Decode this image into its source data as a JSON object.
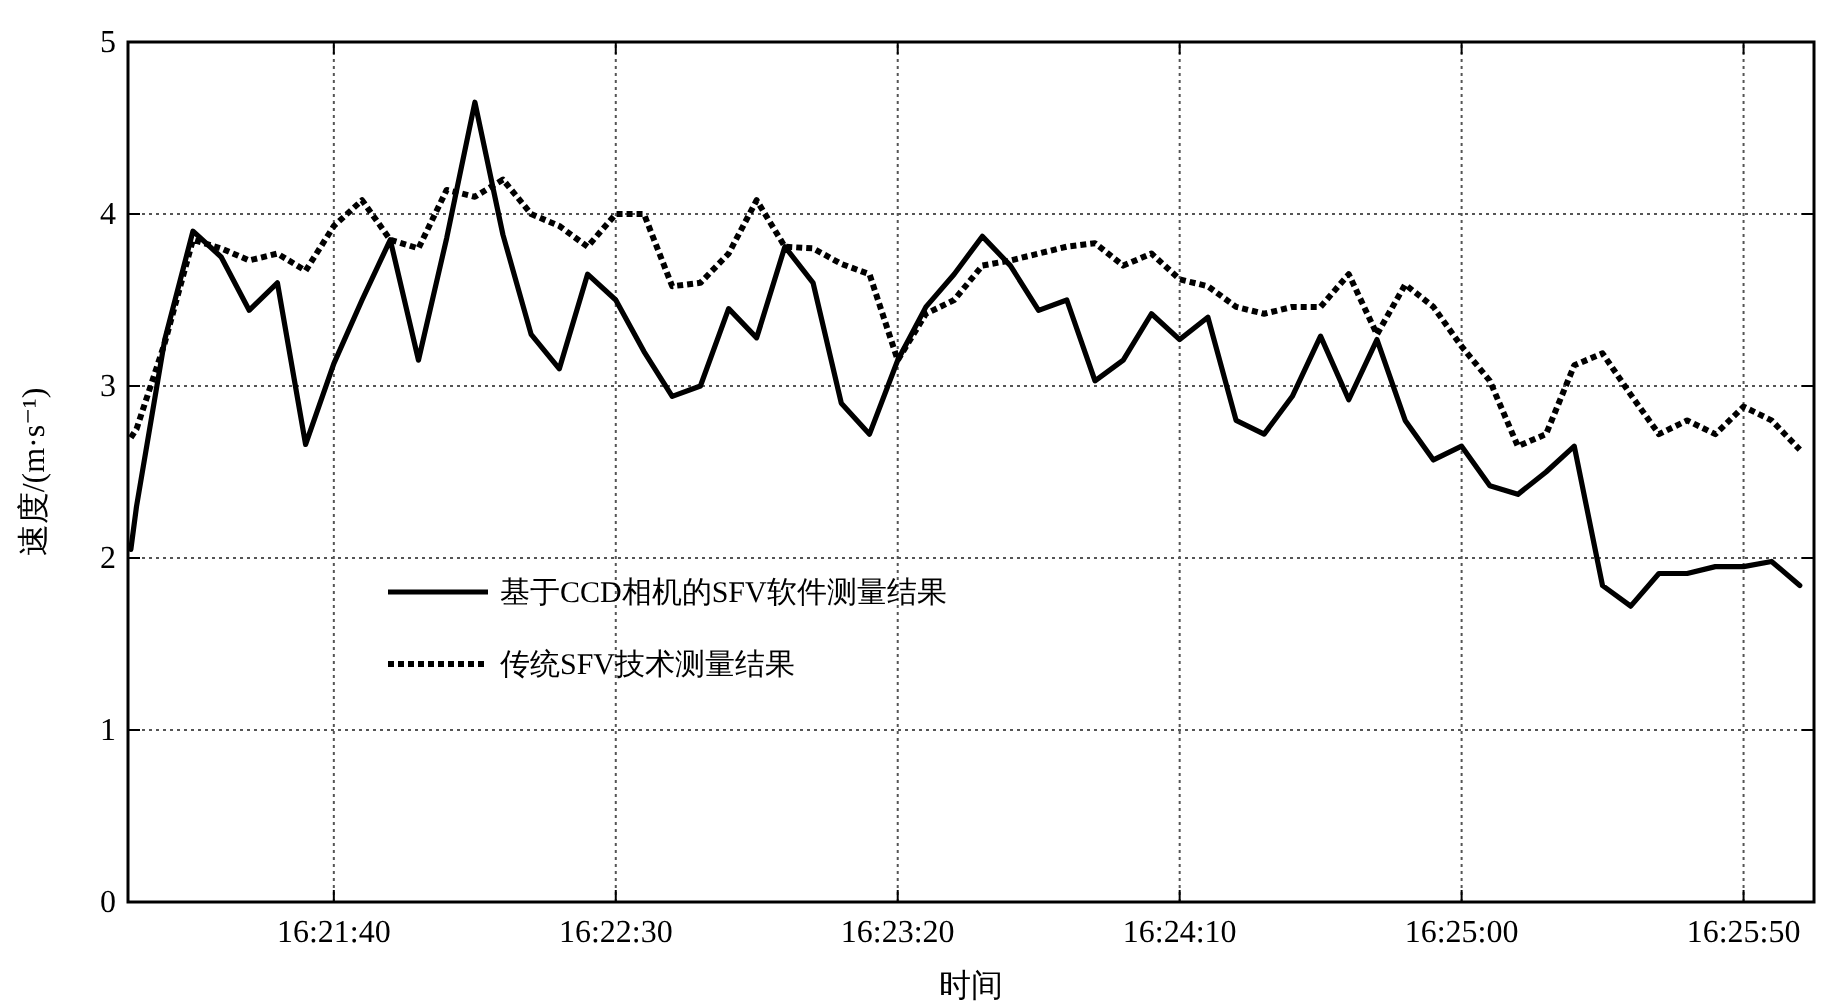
{
  "chart_data": {
    "type": "line",
    "xlabel": "时间",
    "ylabel": "速度/(m·s⁻¹)",
    "x": [
      16.35111,
      16.35139,
      16.35278,
      16.35417,
      16.35556,
      16.35694,
      16.35833,
      16.35972,
      16.36111,
      16.3625,
      16.36389,
      16.36528,
      16.36667,
      16.36806,
      16.36944,
      16.37083,
      16.37222,
      16.37361,
      16.375,
      16.37639,
      16.37778,
      16.37917,
      16.38056,
      16.38194,
      16.38333,
      16.38472,
      16.38611,
      16.3875,
      16.38889,
      16.39028,
      16.39167,
      16.39306,
      16.39444,
      16.39583,
      16.39722,
      16.39861,
      16.4,
      16.40139,
      16.40278,
      16.40417,
      16.40556,
      16.40694,
      16.40833,
      16.40972,
      16.41111,
      16.4125,
      16.41389,
      16.41528,
      16.41667,
      16.41806,
      16.41944,
      16.42083,
      16.42222,
      16.42361,
      16.425,
      16.42639,
      16.42778,
      16.42917,
      16.43056,
      16.43194,
      16.43333
    ],
    "series": [
      {
        "name": "基于CCD相机的SFV软件测量结果",
        "color": "#000000",
        "line_style": "solid",
        "values": [
          2.05,
          2.3,
          3.27,
          3.9,
          3.75,
          3.44,
          3.6,
          2.66,
          3.13,
          3.5,
          3.85,
          3.15,
          3.86,
          4.65,
          3.88,
          3.3,
          3.1,
          3.65,
          3.5,
          3.2,
          2.94,
          3.0,
          3.45,
          3.28,
          3.81,
          3.6,
          2.9,
          2.72,
          3.15,
          3.46,
          3.65,
          3.87,
          3.7,
          3.44,
          3.5,
          3.03,
          3.15,
          3.42,
          3.27,
          3.4,
          2.8,
          2.72,
          2.94,
          3.29,
          2.92,
          3.27,
          2.8,
          2.57,
          2.65,
          2.42,
          2.37,
          2.5,
          2.65,
          1.84,
          1.72,
          1.91,
          1.91,
          1.95,
          1.95,
          1.98,
          1.84
        ]
      },
      {
        "name": "传统SFV技术测量结果",
        "color": "#000000",
        "line_style": "dotted",
        "values": [
          2.7,
          2.75,
          3.25,
          3.85,
          3.8,
          3.73,
          3.77,
          3.67,
          3.93,
          4.08,
          3.85,
          3.8,
          4.14,
          4.1,
          4.2,
          4.0,
          3.93,
          3.81,
          4.0,
          4.0,
          3.58,
          3.6,
          3.77,
          4.08,
          3.81,
          3.8,
          3.71,
          3.65,
          3.15,
          3.42,
          3.5,
          3.7,
          3.73,
          3.77,
          3.81,
          3.83,
          3.7,
          3.77,
          3.62,
          3.58,
          3.46,
          3.42,
          3.46,
          3.46,
          3.65,
          3.3,
          3.59,
          3.46,
          3.23,
          3.03,
          2.65,
          2.72,
          3.12,
          3.19,
          2.95,
          2.72,
          2.8,
          2.72,
          2.88,
          2.8,
          2.63
        ]
      }
    ],
    "xlim": [
      16.35097,
      16.43403
    ],
    "xticks": [
      {
        "value": 16.36111,
        "label": "16:21:40"
      },
      {
        "value": 16.375,
        "label": "16:22:30"
      },
      {
        "value": 16.38889,
        "label": "16:23:20"
      },
      {
        "value": 16.40278,
        "label": "16:24:10"
      },
      {
        "value": 16.41667,
        "label": "16:25:00"
      },
      {
        "value": 16.43056,
        "label": "16:25:50"
      }
    ],
    "ylim": [
      0,
      5
    ],
    "yticks": [
      0,
      1,
      2,
      3,
      4,
      5
    ],
    "grid": true,
    "legend": "bottom left"
  }
}
